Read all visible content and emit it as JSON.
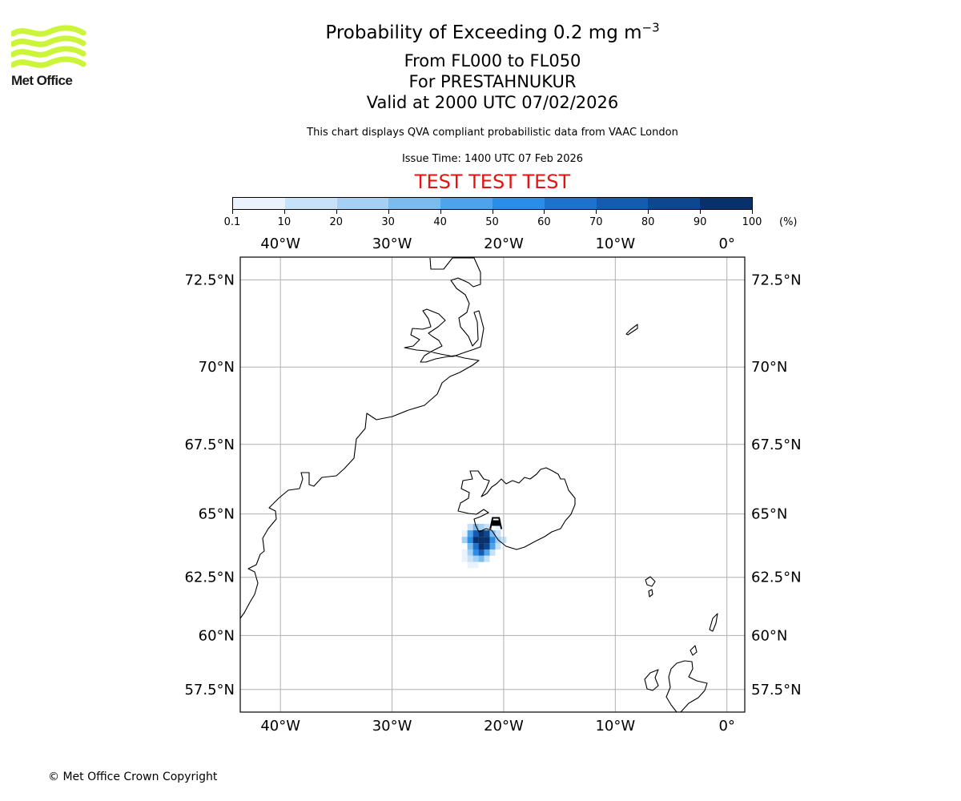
{
  "header": {
    "title_prefix": "Probability of Exceeding 0.2 mg m",
    "title_exponent": "−3",
    "flight_levels": "From FL000 to FL050",
    "location": "For PRESTAHNUKUR",
    "valid_time": "Valid at 2000 UTC 07/02/2026",
    "description": "This chart displays QVA compliant probabilistic data from VAAC London",
    "issue_time": "Issue Time: 1400 UTC 07 Feb 2026",
    "test_banner": "TEST TEST TEST",
    "test_color": "#e8110f"
  },
  "logo": {
    "text": "Met Office",
    "color": "#ccf53a"
  },
  "colorbar": {
    "unit": "(%)",
    "ticks": [
      "0.1",
      "10",
      "20",
      "30",
      "40",
      "50",
      "60",
      "70",
      "80",
      "90",
      "100"
    ],
    "colors": [
      "#eaf3fd",
      "#c7e1f8",
      "#a5cff3",
      "#7cbbee",
      "#4fa3ec",
      "#2a8de8",
      "#1d72ce",
      "#155bb0",
      "#0d4790",
      "#08306b"
    ]
  },
  "map": {
    "lon_ticks": [
      "40°W",
      "30°W",
      "20°W",
      "10°W",
      "0°"
    ],
    "lat_ticks": [
      "72.5°N",
      "70°N",
      "67.5°N",
      "65°N",
      "62.5°N",
      "60°N",
      "57.5°N"
    ],
    "extent": {
      "lon_min": -43.6,
      "lon_max": 1.6,
      "lat_min": 56.4,
      "lat_max": 73.1
    },
    "volcano_icon": "volcano-marker-icon",
    "plume_probability_cells": [
      {
        "lon": -23.0,
        "lat": 64.5,
        "p": 15
      },
      {
        "lon": -22.5,
        "lat": 64.5,
        "p": 35
      },
      {
        "lon": -22.0,
        "lat": 64.5,
        "p": 25
      },
      {
        "lon": -21.5,
        "lat": 64.5,
        "p": 15
      },
      {
        "lon": -23.5,
        "lat": 64.25,
        "p": 8
      },
      {
        "lon": -23.0,
        "lat": 64.25,
        "p": 45
      },
      {
        "lon": -22.5,
        "lat": 64.25,
        "p": 70
      },
      {
        "lon": -22.0,
        "lat": 64.25,
        "p": 95
      },
      {
        "lon": -21.5,
        "lat": 64.25,
        "p": 85
      },
      {
        "lon": -21.0,
        "lat": 64.25,
        "p": 35
      },
      {
        "lon": -20.5,
        "lat": 64.25,
        "p": 15
      },
      {
        "lon": -23.5,
        "lat": 64.0,
        "p": 20
      },
      {
        "lon": -23.0,
        "lat": 64.0,
        "p": 55
      },
      {
        "lon": -22.5,
        "lat": 64.0,
        "p": 90
      },
      {
        "lon": -22.0,
        "lat": 64.0,
        "p": 95
      },
      {
        "lon": -21.5,
        "lat": 64.0,
        "p": 92
      },
      {
        "lon": -21.0,
        "lat": 64.0,
        "p": 55
      },
      {
        "lon": -20.5,
        "lat": 64.0,
        "p": 25
      },
      {
        "lon": -20.0,
        "lat": 64.0,
        "p": 12
      },
      {
        "lon": -23.0,
        "lat": 63.75,
        "p": 30
      },
      {
        "lon": -22.5,
        "lat": 63.75,
        "p": 65
      },
      {
        "lon": -22.0,
        "lat": 63.75,
        "p": 92
      },
      {
        "lon": -21.5,
        "lat": 63.75,
        "p": 80
      },
      {
        "lon": -21.0,
        "lat": 63.75,
        "p": 40
      },
      {
        "lon": -20.5,
        "lat": 63.75,
        "p": 15
      },
      {
        "lon": -23.5,
        "lat": 63.5,
        "p": 8
      },
      {
        "lon": -23.0,
        "lat": 63.5,
        "p": 20
      },
      {
        "lon": -22.5,
        "lat": 63.5,
        "p": 50
      },
      {
        "lon": -22.0,
        "lat": 63.5,
        "p": 75
      },
      {
        "lon": -21.5,
        "lat": 63.5,
        "p": 45
      },
      {
        "lon": -21.0,
        "lat": 63.5,
        "p": 15
      },
      {
        "lon": -23.5,
        "lat": 63.25,
        "p": 5
      },
      {
        "lon": -23.0,
        "lat": 63.25,
        "p": 12
      },
      {
        "lon": -22.5,
        "lat": 63.25,
        "p": 25
      },
      {
        "lon": -22.0,
        "lat": 63.25,
        "p": 30
      },
      {
        "lon": -21.5,
        "lat": 63.25,
        "p": 15
      },
      {
        "lon": -23.0,
        "lat": 63.0,
        "p": 5
      },
      {
        "lon": -22.5,
        "lat": 63.0,
        "p": 8
      },
      {
        "lon": -20.5,
        "lat": 64.5,
        "p": 5
      }
    ]
  },
  "footer": {
    "copyright": "© Met Office Crown Copyright"
  }
}
